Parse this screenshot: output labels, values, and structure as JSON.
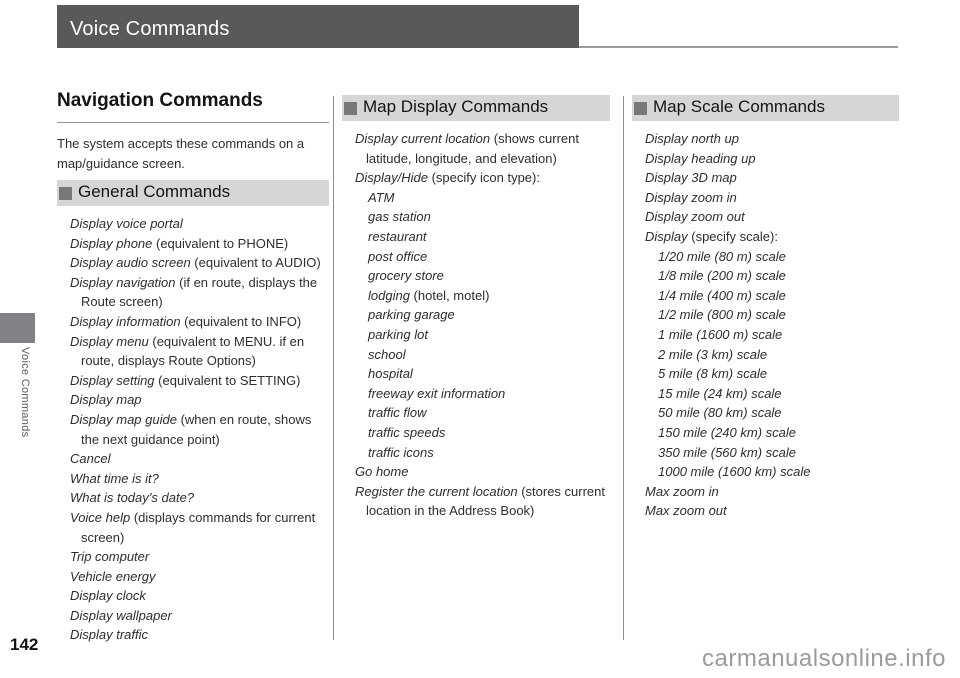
{
  "page": {
    "header_title": "Voice Commands",
    "sidebar_label": "Voice Commands",
    "page_number": "142",
    "watermark": "carmanualsonline.info"
  },
  "colors": {
    "header_bar": "#58595b",
    "section_bar_bg": "#d6d6d6",
    "section_bullet": "#77787a",
    "sidebar_tab": "#808285",
    "body_text": "#2e2e2e",
    "watermark": "#9b9b9b"
  },
  "left_column": {
    "title": "Navigation Commands",
    "intro": "The system accepts these commands on a map/guidance screen.",
    "section": {
      "heading": "General Commands",
      "items": [
        {
          "cmd": "Display voice portal",
          "desc": ""
        },
        {
          "cmd": "Display phone",
          "desc": " (equivalent to PHONE)"
        },
        {
          "cmd": "Display audio screen",
          "desc": " (equivalent to AUDIO)"
        },
        {
          "cmd": "Display navigation",
          "desc": " (if en route, displays the Route screen)"
        },
        {
          "cmd": "Display information",
          "desc": " (equivalent to INFO)"
        },
        {
          "cmd": "Display menu",
          "desc": " (equivalent to MENU. if en route, displays Route Options)"
        },
        {
          "cmd": "Display setting",
          "desc": " (equivalent to SETTING)"
        },
        {
          "cmd": "Display map",
          "desc": ""
        },
        {
          "cmd": "Display map guide",
          "desc": " (when en route, shows the next guidance point)"
        },
        {
          "cmd": "Cancel",
          "desc": ""
        },
        {
          "cmd": "What time is it?",
          "desc": ""
        },
        {
          "cmd": "What is today’s date?",
          "desc": ""
        },
        {
          "cmd": "Voice help",
          "desc": " (displays commands for current screen)"
        },
        {
          "cmd": "Trip computer",
          "desc": ""
        },
        {
          "cmd": "Vehicle energy",
          "desc": ""
        },
        {
          "cmd": "Display clock",
          "desc": ""
        },
        {
          "cmd": "Display wallpaper",
          "desc": ""
        },
        {
          "cmd": "Display traffic",
          "desc": ""
        }
      ]
    }
  },
  "middle_column": {
    "section": {
      "heading": "Map Display Commands",
      "items": [
        {
          "cmd": "Display current location",
          "desc": " (shows current latitude, longitude, and elevation)"
        },
        {
          "cmd": "Display/Hide",
          "desc": " (specify icon type):"
        },
        {
          "cmd": "ATM",
          "desc": "",
          "sub": true
        },
        {
          "cmd": "gas station",
          "desc": "",
          "sub": true
        },
        {
          "cmd": "restaurant",
          "desc": "",
          "sub": true
        },
        {
          "cmd": "post office",
          "desc": "",
          "sub": true
        },
        {
          "cmd": "grocery store",
          "desc": "",
          "sub": true
        },
        {
          "cmd": "lodging",
          "desc": " (hotel, motel)",
          "sub": true
        },
        {
          "cmd": "parking garage",
          "desc": "",
          "sub": true
        },
        {
          "cmd": "parking lot",
          "desc": "",
          "sub": true
        },
        {
          "cmd": "school",
          "desc": "",
          "sub": true
        },
        {
          "cmd": "hospital",
          "desc": "",
          "sub": true
        },
        {
          "cmd": "freeway exit information",
          "desc": "",
          "sub": true
        },
        {
          "cmd": "traffic flow",
          "desc": "",
          "sub": true
        },
        {
          "cmd": "traffic speeds",
          "desc": "",
          "sub": true
        },
        {
          "cmd": "traffic icons",
          "desc": "",
          "sub": true
        },
        {
          "cmd": "Go home",
          "desc": ""
        },
        {
          "cmd": "Register the current location",
          "desc": " (stores current location in the Address Book)"
        }
      ]
    }
  },
  "right_column": {
    "section": {
      "heading": "Map Scale Commands",
      "items": [
        {
          "cmd": "Display north up",
          "desc": ""
        },
        {
          "cmd": "Display heading up",
          "desc": ""
        },
        {
          "cmd": "Display 3D map",
          "desc": ""
        },
        {
          "cmd": "Display zoom in",
          "desc": ""
        },
        {
          "cmd": "Display zoom out",
          "desc": ""
        },
        {
          "cmd": "Display",
          "desc": " (specify scale):"
        },
        {
          "cmd": "1/20 mile (80 m) scale",
          "desc": "",
          "sub": true
        },
        {
          "cmd": "1/8 mile (200 m) scale",
          "desc": "",
          "sub": true
        },
        {
          "cmd": "1/4 mile (400 m) scale",
          "desc": "",
          "sub": true
        },
        {
          "cmd": "1/2 mile (800 m) scale",
          "desc": "",
          "sub": true
        },
        {
          "cmd": "1 mile (1600 m) scale",
          "desc": "",
          "sub": true
        },
        {
          "cmd": "2 mile (3 km) scale",
          "desc": "",
          "sub": true
        },
        {
          "cmd": "5 mile (8 km) scale",
          "desc": "",
          "sub": true
        },
        {
          "cmd": "15 mile (24 km) scale",
          "desc": "",
          "sub": true
        },
        {
          "cmd": "50 mile (80 km) scale",
          "desc": "",
          "sub": true
        },
        {
          "cmd": "150 mile (240 km) scale",
          "desc": "",
          "sub": true
        },
        {
          "cmd": "350 mile (560 km) scale",
          "desc": "",
          "sub": true
        },
        {
          "cmd": "1000 mile (1600 km) scale",
          "desc": "",
          "sub": true
        },
        {
          "cmd": "Max zoom in",
          "desc": ""
        },
        {
          "cmd": "Max zoom out",
          "desc": ""
        }
      ]
    }
  }
}
